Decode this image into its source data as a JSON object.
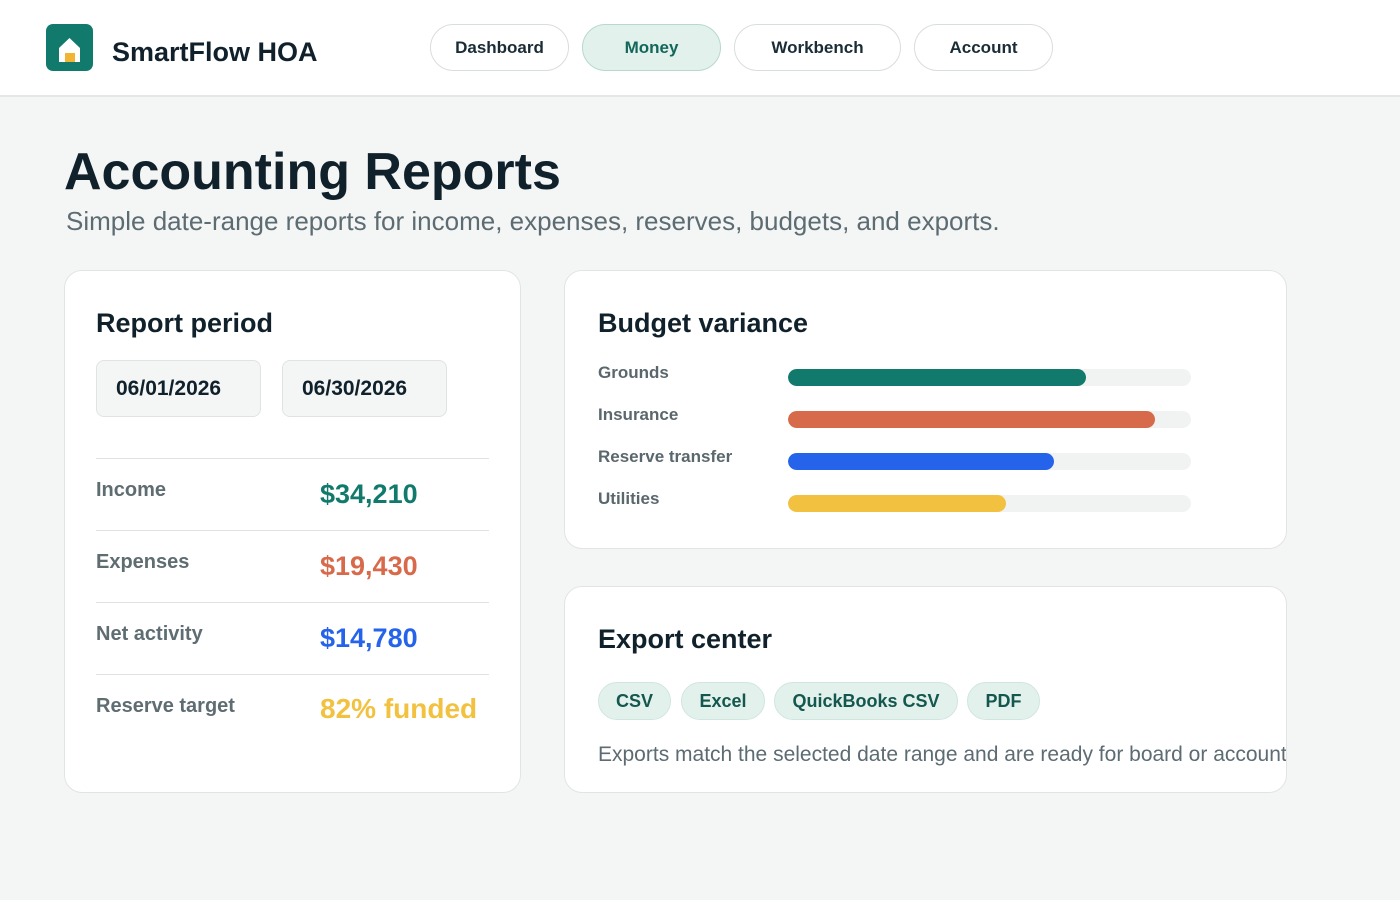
{
  "header": {
    "brand": "SmartFlow HOA",
    "nav": [
      {
        "label": "Dashboard",
        "active": false
      },
      {
        "label": "Money",
        "active": true
      },
      {
        "label": "Workbench",
        "active": false
      },
      {
        "label": "Account",
        "active": false
      }
    ]
  },
  "page": {
    "title": "Accounting Reports",
    "subtitle": "Simple date-range reports for income, expenses, reserves, budgets, and exports."
  },
  "report_period": {
    "title": "Report period",
    "start_date": "06/01/2026",
    "end_date": "06/30/2026",
    "stats": [
      {
        "label": "Income",
        "value": "$34,210",
        "color": "#127a6c"
      },
      {
        "label": "Expenses",
        "value": "$19,430",
        "color": "#d86a4c"
      },
      {
        "label": "Net activity",
        "value": "$14,780",
        "color": "#2563eb"
      },
      {
        "label": "Reserve target",
        "value": "82% funded",
        "color": "#f2c140"
      }
    ]
  },
  "budget_variance": {
    "title": "Budget variance",
    "items": [
      {
        "label": "Grounds",
        "fraction": 0.74,
        "color": "#127a6c"
      },
      {
        "label": "Insurance",
        "fraction": 0.91,
        "color": "#d86a4c"
      },
      {
        "label": "Reserve transfer",
        "fraction": 0.66,
        "color": "#2563eb"
      },
      {
        "label": "Utilities",
        "fraction": 0.54,
        "color": "#f2c140"
      }
    ]
  },
  "export_center": {
    "title": "Export center",
    "formats": [
      "CSV",
      "Excel",
      "QuickBooks CSV",
      "PDF"
    ],
    "note": "Exports match the selected date range and are ready for board or accountant review."
  },
  "icons": {
    "logo": "house-icon"
  },
  "colors": {
    "accent": "#127a6c",
    "background": "#f4f6f5"
  }
}
